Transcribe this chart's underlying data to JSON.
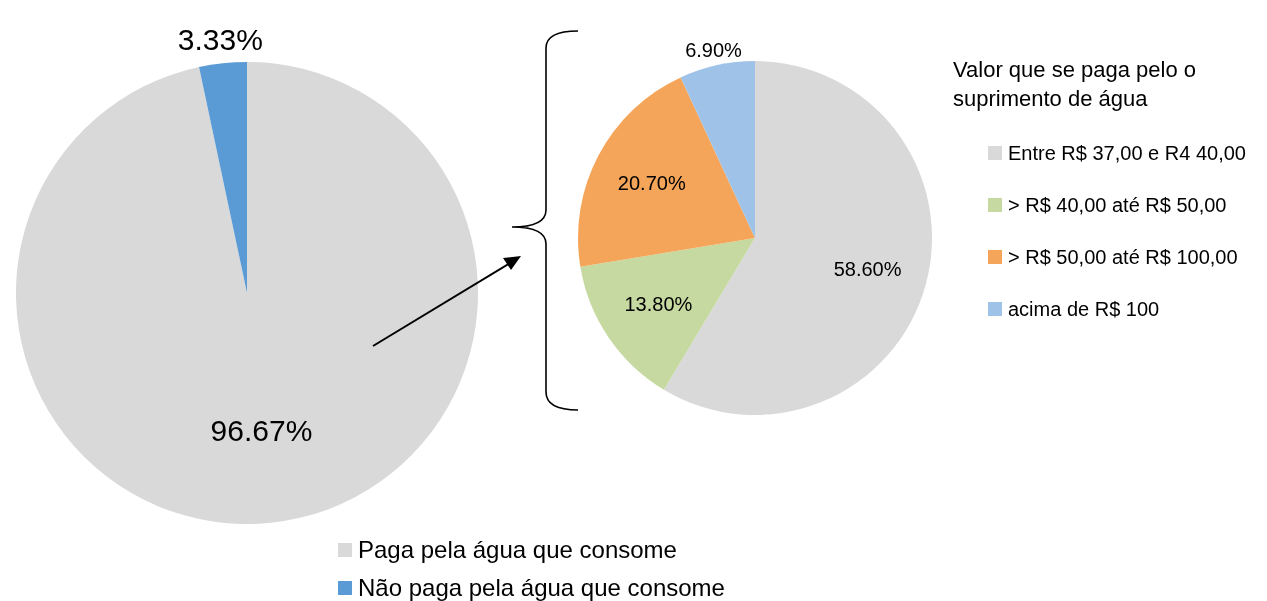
{
  "chart_data": [
    {
      "type": "pie",
      "categories": [
        "Paga pela água que consome",
        "Não paga pela água que consome"
      ],
      "values": [
        96.67,
        3.33
      ],
      "colors": [
        "#d9d9d9",
        "#5b9bd5"
      ],
      "value_labels": [
        "96.67%",
        "3.33%"
      ],
      "legend": "bottom"
    },
    {
      "type": "pie",
      "legend_title": "Valor que se paga pelo o suprimento de água",
      "categories": [
        "Entre R$ 37,00 e R4 40,00",
        "> R$ 40,00 até R$ 50,00",
        "> R$ 50,00 até R$ 100,00",
        "acima de R$ 100"
      ],
      "values": [
        58.6,
        13.8,
        20.7,
        6.9
      ],
      "colors": [
        "#d9d9d9",
        "#c6d9a0",
        "#f4a55a",
        "#9fc3e8"
      ],
      "value_labels": [
        "58.60%",
        "13.80%",
        "20.70%",
        "6.90%"
      ],
      "legend": "right"
    }
  ]
}
